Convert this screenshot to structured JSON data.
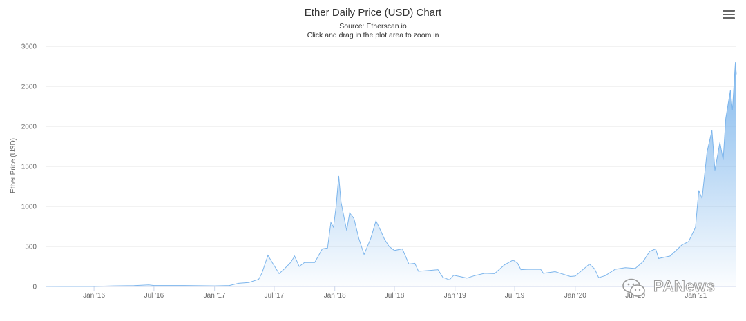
{
  "header": {
    "title": "Ether Daily Price (USD) Chart",
    "source": "Source: Etherscan.io",
    "hint": "Click and drag in the plot area to zoom in",
    "menu_icon": "hamburger-menu-icon"
  },
  "watermark": {
    "text": "PANews",
    "icon": "wechat-icon"
  },
  "colors": {
    "line": "#7cb5ec",
    "fill_top": "#7cb5ec",
    "grid": "#e6e6e6",
    "axis_text": "#666666"
  },
  "chart_data": {
    "type": "area",
    "title": "Ether Daily Price (USD) Chart",
    "subtitle": "Source: Etherscan.io",
    "ylabel": "Ether Price (USD)",
    "xlabel": "",
    "ylim": [
      0,
      3000
    ],
    "xlim": [
      "2015-08-07",
      "2021-05-04"
    ],
    "yticks": [
      0,
      500,
      1000,
      1500,
      2000,
      2500,
      3000
    ],
    "xticks": [
      {
        "date": "2016-01-01",
        "label": "Jan '16"
      },
      {
        "date": "2016-07-01",
        "label": "Jul '16"
      },
      {
        "date": "2017-01-01",
        "label": "Jan '17"
      },
      {
        "date": "2017-07-01",
        "label": "Jul '17"
      },
      {
        "date": "2018-01-01",
        "label": "Jan '18"
      },
      {
        "date": "2018-07-01",
        "label": "Jul '18"
      },
      {
        "date": "2019-01-01",
        "label": "Jan '19"
      },
      {
        "date": "2019-07-01",
        "label": "Jul '19"
      },
      {
        "date": "2020-01-01",
        "label": "Jan '20"
      },
      {
        "date": "2020-07-01",
        "label": "Jul '20"
      },
      {
        "date": "2021-01-01",
        "label": "Jan '21"
      }
    ],
    "grid": true,
    "legend": "none",
    "series": [
      {
        "points": [
          [
            "2015-08-07",
            3
          ],
          [
            "2015-10-01",
            1
          ],
          [
            "2016-01-01",
            1
          ],
          [
            "2016-03-01",
            8
          ],
          [
            "2016-05-01",
            10
          ],
          [
            "2016-06-15",
            20
          ],
          [
            "2016-07-01",
            12
          ],
          [
            "2016-10-01",
            12
          ],
          [
            "2017-01-01",
            8
          ],
          [
            "2017-02-15",
            12
          ],
          [
            "2017-03-15",
            40
          ],
          [
            "2017-04-15",
            50
          ],
          [
            "2017-05-15",
            90
          ],
          [
            "2017-05-25",
            170
          ],
          [
            "2017-06-12",
            390
          ],
          [
            "2017-06-25",
            300
          ],
          [
            "2017-07-16",
            160
          ],
          [
            "2017-08-01",
            220
          ],
          [
            "2017-08-20",
            300
          ],
          [
            "2017-09-01",
            380
          ],
          [
            "2017-09-15",
            250
          ],
          [
            "2017-10-01",
            300
          ],
          [
            "2017-11-01",
            300
          ],
          [
            "2017-11-24",
            470
          ],
          [
            "2017-12-10",
            480
          ],
          [
            "2017-12-20",
            800
          ],
          [
            "2017-12-28",
            740
          ],
          [
            "2018-01-05",
            1000
          ],
          [
            "2018-01-13",
            1380
          ],
          [
            "2018-01-20",
            1050
          ],
          [
            "2018-02-06",
            700
          ],
          [
            "2018-02-15",
            920
          ],
          [
            "2018-02-28",
            850
          ],
          [
            "2018-03-15",
            600
          ],
          [
            "2018-03-31",
            400
          ],
          [
            "2018-04-20",
            600
          ],
          [
            "2018-05-06",
            820
          ],
          [
            "2018-05-20",
            700
          ],
          [
            "2018-06-01",
            590
          ],
          [
            "2018-06-15",
            500
          ],
          [
            "2018-07-01",
            450
          ],
          [
            "2018-07-25",
            470
          ],
          [
            "2018-08-14",
            280
          ],
          [
            "2018-09-01",
            290
          ],
          [
            "2018-09-12",
            190
          ],
          [
            "2018-10-15",
            200
          ],
          [
            "2018-11-10",
            210
          ],
          [
            "2018-11-25",
            115
          ],
          [
            "2018-12-15",
            84
          ],
          [
            "2018-12-28",
            140
          ],
          [
            "2019-01-15",
            125
          ],
          [
            "2019-02-06",
            105
          ],
          [
            "2019-03-01",
            135
          ],
          [
            "2019-04-01",
            165
          ],
          [
            "2019-05-01",
            160
          ],
          [
            "2019-05-31",
            270
          ],
          [
            "2019-06-26",
            330
          ],
          [
            "2019-07-10",
            290
          ],
          [
            "2019-07-20",
            210
          ],
          [
            "2019-08-10",
            215
          ],
          [
            "2019-09-18",
            215
          ],
          [
            "2019-09-26",
            165
          ],
          [
            "2019-11-01",
            185
          ],
          [
            "2019-12-17",
            125
          ],
          [
            "2020-01-01",
            130
          ],
          [
            "2020-02-13",
            280
          ],
          [
            "2020-02-29",
            220
          ],
          [
            "2020-03-12",
            110
          ],
          [
            "2020-04-01",
            135
          ],
          [
            "2020-05-01",
            215
          ],
          [
            "2020-06-01",
            235
          ],
          [
            "2020-07-01",
            225
          ],
          [
            "2020-07-25",
            310
          ],
          [
            "2020-08-14",
            440
          ],
          [
            "2020-09-01",
            470
          ],
          [
            "2020-09-10",
            350
          ],
          [
            "2020-10-15",
            380
          ],
          [
            "2020-11-20",
            520
          ],
          [
            "2020-12-10",
            560
          ],
          [
            "2020-12-31",
            740
          ],
          [
            "2021-01-10",
            1200
          ],
          [
            "2021-01-20",
            1100
          ],
          [
            "2021-02-04",
            1680
          ],
          [
            "2021-02-19",
            1950
          ],
          [
            "2021-02-28",
            1450
          ],
          [
            "2021-03-15",
            1800
          ],
          [
            "2021-03-25",
            1580
          ],
          [
            "2021-04-02",
            2100
          ],
          [
            "2021-04-16",
            2450
          ],
          [
            "2021-04-22",
            2200
          ],
          [
            "2021-05-01",
            2800
          ],
          [
            "2021-05-04",
            2650
          ]
        ]
      }
    ]
  }
}
